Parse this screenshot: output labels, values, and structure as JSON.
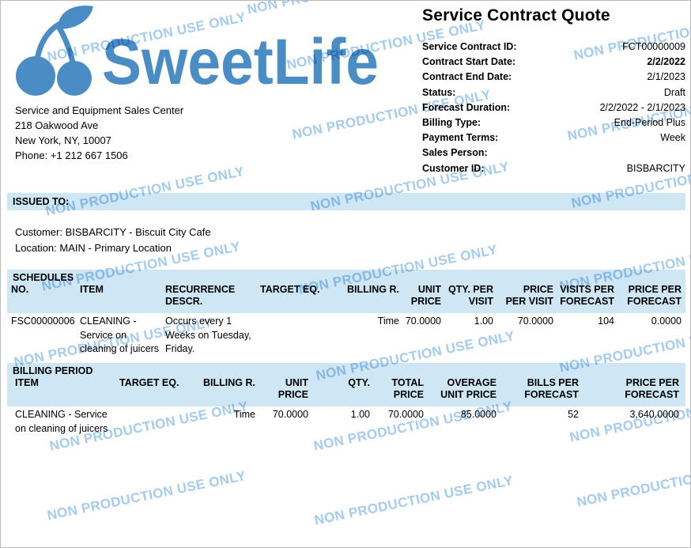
{
  "watermark": {
    "text": "NON PRODUCTION USE ONLY",
    "color": "#a4cbf0"
  },
  "brand": {
    "name": "SweetLife",
    "color": "#4a8cc4"
  },
  "company": {
    "lines": [
      "Service and Equipment Sales Center",
      "218 Oakwood Ave",
      "New York, NY, 10007",
      "Phone: +1 212 667 1506"
    ]
  },
  "title": "Service Contract Quote",
  "contract": {
    "fields": [
      {
        "label": "Service Contract ID:",
        "value": "FCT00000009",
        "bold": false
      },
      {
        "label": "Contract Start Date:",
        "value": "2/2/2022",
        "bold": true
      },
      {
        "label": "Contract End Date:",
        "value": "2/1/2023",
        "bold": false
      },
      {
        "label": "Status:",
        "value": "Draft",
        "bold": false
      },
      {
        "label": "Forecast Duration:",
        "value": "2/2/2022 - 2/1/2023",
        "bold": false
      },
      {
        "label": "Billing Type:",
        "value": "End-Period Plus",
        "bold": false
      },
      {
        "label": "Payment Terms:",
        "value": "Week",
        "bold": false
      },
      {
        "label": "Sales Person:",
        "value": "",
        "bold": false
      },
      {
        "label": "Customer ID:",
        "value": "BISBARCITY",
        "bold": false
      }
    ]
  },
  "issued_to": {
    "heading": "ISSUED TO:",
    "lines": [
      "Customer: BISBARCITY - Biscuit City Cafe",
      "Location: MAIN - Primary Location"
    ]
  },
  "schedules": {
    "heading": "SCHEDULES",
    "columns": [
      "NO.",
      "ITEM",
      "RECURRENCE\nDESCR.",
      "TARGET EQ.",
      "BILLING R.",
      "UNIT\nPRICE",
      "QTY. PER\nVISIT",
      "PRICE\nPER VISIT",
      "VISITS PER\nFORECAST",
      "PRICE PER\nFORECAST"
    ],
    "row": {
      "cells": [
        "FSC00000006",
        "CLEANING -\nService on\ncleaning of juicers",
        "Occurs every 1\nWeeks on Tuesday,\nFriday.",
        "",
        "Time",
        "70.0000",
        "1.00",
        "70.0000",
        "104",
        "0.0000"
      ]
    }
  },
  "billing_period": {
    "heading": "BILLING PERIOD",
    "columns": [
      "ITEM",
      "TARGET EQ.",
      "BILLING R.",
      "UNIT\nPRICE",
      "QTY.",
      "TOTAL\nPRICE",
      "OVERAGE\nUNIT PRICE",
      "BILLS PER\nFORECAST",
      "PRICE PER\nFORECAST"
    ],
    "row": {
      "cells": [
        "CLEANING - Service\non cleaning of juicers",
        "",
        "Time",
        "70.0000",
        "1.00",
        "70.0000",
        "85.0000",
        "52",
        "3,640.0000"
      ]
    }
  }
}
